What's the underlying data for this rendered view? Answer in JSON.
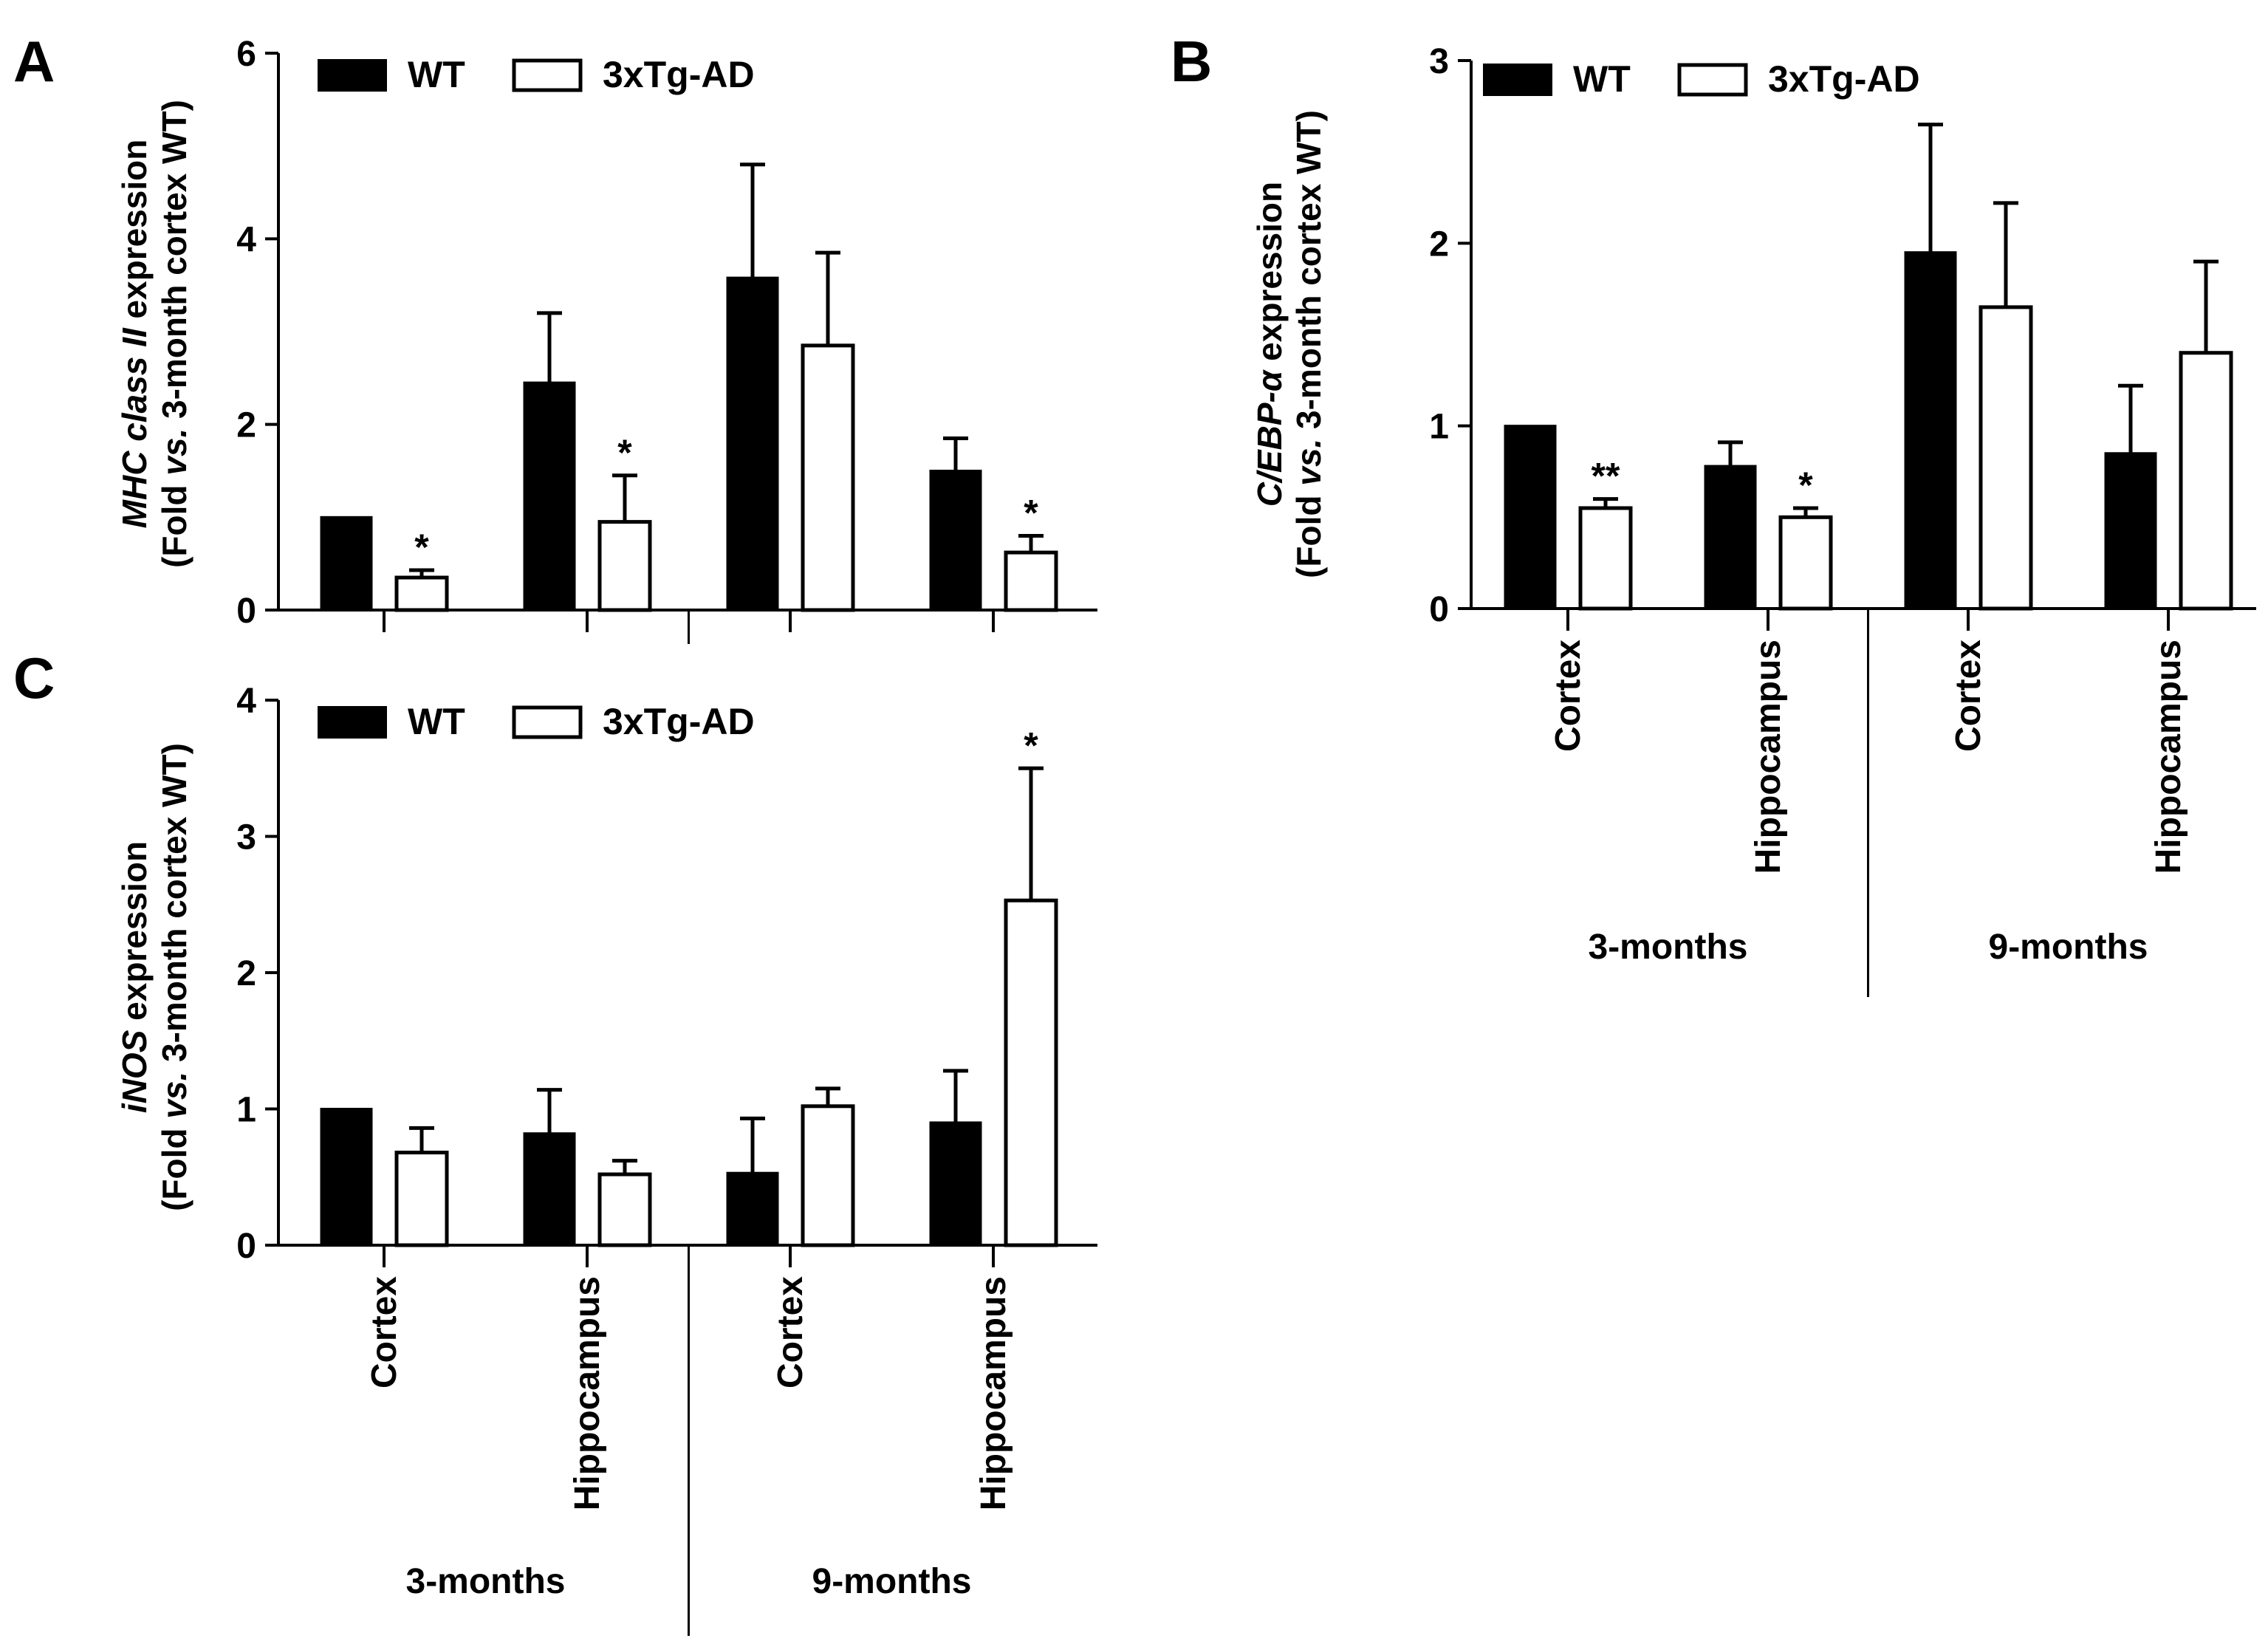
{
  "figure": {
    "categories": [
      "Cortex",
      "Hippocampus",
      "Cortex",
      "Hippocampus"
    ],
    "groups": [
      "3-months",
      "9-months"
    ],
    "legend": {
      "wt": "WT",
      "tg": "3xTg-AD"
    },
    "colors": {
      "wt_fill": "#000000",
      "tg_fill": "#ffffff",
      "stroke": "#000000"
    }
  },
  "chart_data": [
    {
      "panel": "A",
      "type": "bar",
      "ylabel_line1_italic": "MHC class II",
      "ylabel_line1_rest": " expression",
      "ylabel_line2_pre": "(Fold ",
      "ylabel_line2_italic": "vs.",
      "ylabel_line2_post": " 3-month cortex WT)",
      "ylim": [
        0,
        6
      ],
      "yticks": [
        "0",
        "2",
        "4",
        "6"
      ],
      "tick_values": [
        0,
        2,
        4,
        6
      ],
      "series": [
        {
          "name": "WT",
          "values": [
            1.0,
            2.45,
            3.58,
            1.5
          ],
          "errors": [
            0,
            0.75,
            1.22,
            0.35
          ]
        },
        {
          "name": "3xTg-AD",
          "values": [
            0.35,
            0.95,
            2.85,
            0.62
          ],
          "errors": [
            0.08,
            0.5,
            1.0,
            0.18
          ]
        }
      ],
      "annotations": [
        {
          "category_index": 0,
          "series": "3xTg-AD",
          "text": "*"
        },
        {
          "category_index": 1,
          "series": "3xTg-AD",
          "text": "*"
        },
        {
          "category_index": 3,
          "series": "3xTg-AD",
          "text": "*"
        }
      ],
      "show_category_labels": false
    },
    {
      "panel": "B",
      "type": "bar",
      "ylabel_line1_italic": "C/EBP-α",
      "ylabel_line1_rest": " expression",
      "ylabel_line2_pre": "(Fold ",
      "ylabel_line2_italic": "vs.",
      "ylabel_line2_post": " 3-month cortex WT)",
      "ylim": [
        0,
        3
      ],
      "yticks": [
        "0",
        "1",
        "2",
        "3"
      ],
      "tick_values": [
        0,
        1,
        2,
        3
      ],
      "series": [
        {
          "name": "WT",
          "values": [
            1.0,
            0.78,
            1.95,
            0.85
          ],
          "errors": [
            0,
            0.13,
            0.7,
            0.37
          ]
        },
        {
          "name": "3xTg-AD",
          "values": [
            0.55,
            0.5,
            1.65,
            1.4
          ],
          "errors": [
            0.05,
            0.05,
            0.57,
            0.5
          ]
        }
      ],
      "annotations": [
        {
          "category_index": 0,
          "series": "3xTg-AD",
          "text": "**"
        },
        {
          "category_index": 1,
          "series": "3xTg-AD",
          "text": "*"
        }
      ],
      "show_category_labels": true
    },
    {
      "panel": "C",
      "type": "bar",
      "ylabel_line1_italic": "iNOS",
      "ylabel_line1_rest": " expression",
      "ylabel_line2_pre": "(Fold ",
      "ylabel_line2_italic": "vs.",
      "ylabel_line2_post": " 3-month cortex WT)",
      "ylim": [
        0,
        4
      ],
      "yticks": [
        "0",
        "1",
        "2",
        "3",
        "4"
      ],
      "tick_values": [
        0,
        1,
        2,
        3,
        4
      ],
      "series": [
        {
          "name": "WT",
          "values": [
            1.0,
            0.82,
            0.53,
            0.9
          ],
          "errors": [
            0,
            0.32,
            0.4,
            0.38
          ]
        },
        {
          "name": "3xTg-AD",
          "values": [
            0.68,
            0.52,
            1.02,
            2.53
          ],
          "errors": [
            0.18,
            0.1,
            0.13,
            0.97
          ]
        }
      ],
      "annotations": [
        {
          "category_index": 3,
          "series": "3xTg-AD",
          "text": "*"
        }
      ],
      "show_category_labels": true
    }
  ]
}
